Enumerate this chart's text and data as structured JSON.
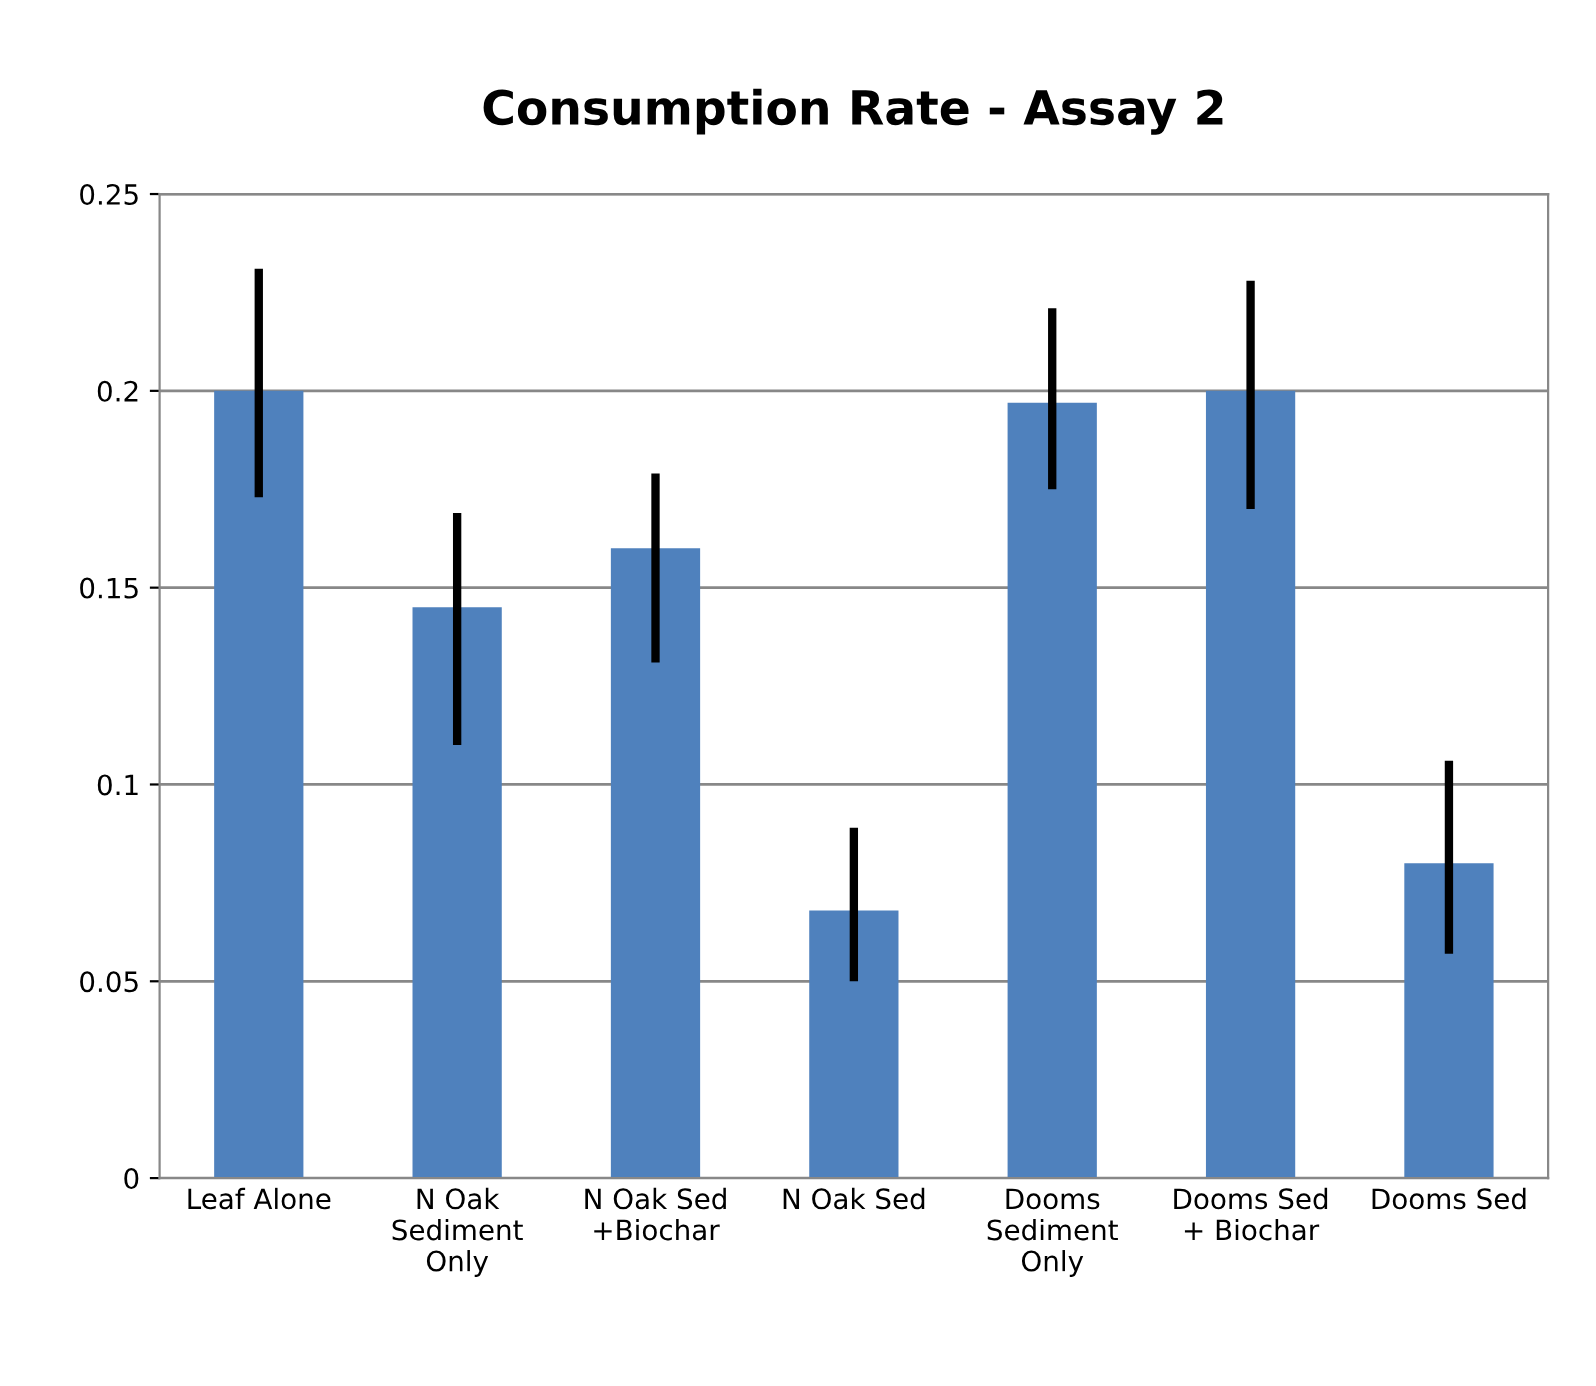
{
  "chart_data": {
    "type": "bar",
    "title": "Consumption Rate - Assay 2",
    "categories": [
      "Leaf Alone",
      "N Oak\nSediment\nOnly",
      "N Oak Sed\n+Biochar",
      "N Oak Sed",
      "Dooms\nSediment\nOnly",
      "Dooms Sed\n+ Biochar",
      "Dooms Sed"
    ],
    "series": [
      {
        "color": "#4f81bd",
        "values": [
          0.2,
          0.145,
          0.16,
          0.068,
          0.197,
          0.2,
          0.08
        ],
        "errors": [
          [
            0.173,
            0.231
          ],
          [
            0.11,
            0.169
          ],
          [
            0.131,
            0.179
          ],
          [
            0.05,
            0.089
          ],
          [
            0.175,
            0.221
          ],
          [
            0.17,
            0.228
          ],
          [
            0.057,
            0.106
          ]
        ]
      }
    ],
    "ylim": [
      0,
      0.25
    ],
    "yticks": [
      0,
      0.05,
      0.1,
      0.15,
      0.2,
      0.25
    ],
    "grid": "y",
    "legend": false
  }
}
